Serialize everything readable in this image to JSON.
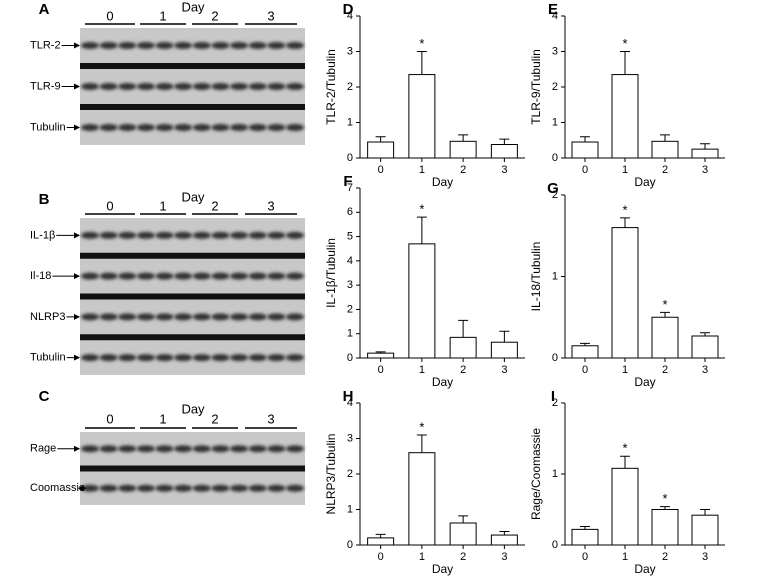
{
  "blots": [
    {
      "panel": "A",
      "title": "Day",
      "groups": [
        "0",
        "1",
        "2",
        "3"
      ],
      "rows": [
        "TLR-2",
        "TLR-9",
        "Tubulin"
      ]
    },
    {
      "panel": "B",
      "title": "Day",
      "groups": [
        "0",
        "1",
        "2",
        "3"
      ],
      "rows": [
        "IL-1β",
        "Il-18",
        "NLRP3",
        "Tubulin"
      ]
    },
    {
      "panel": "C",
      "title": "Day",
      "groups": [
        "0",
        "1",
        "2",
        "3"
      ],
      "rows": [
        "Rage",
        "Coomassie"
      ]
    }
  ],
  "chart_data": [
    {
      "type": "bar",
      "panel": "D",
      "ylabel": "TLR-2/Tubulin",
      "xlabel": "Day",
      "categories": [
        "0",
        "1",
        "2",
        "3"
      ],
      "values": [
        0.45,
        2.35,
        0.47,
        0.38
      ],
      "errors": [
        0.15,
        0.65,
        0.18,
        0.15
      ],
      "color": "#ffffff",
      "ylim": [
        0,
        4
      ],
      "yticks": [
        0,
        1,
        2,
        3,
        4
      ],
      "annotations": [
        {
          "x": "1",
          "text": "*"
        }
      ]
    },
    {
      "type": "bar",
      "panel": "E",
      "ylabel": "TLR-9/Tubulin",
      "xlabel": "Day",
      "categories": [
        "0",
        "1",
        "2",
        "3"
      ],
      "values": [
        0.45,
        2.35,
        0.47,
        0.25
      ],
      "errors": [
        0.15,
        0.65,
        0.18,
        0.15
      ],
      "color": "#ffffff",
      "ylim": [
        0,
        4
      ],
      "yticks": [
        0,
        1,
        2,
        3,
        4
      ],
      "annotations": [
        {
          "x": "1",
          "text": "*"
        }
      ]
    },
    {
      "type": "bar",
      "panel": "F",
      "ylabel": "IL-1β/Tubulin",
      "xlabel": "Day",
      "categories": [
        "0",
        "1",
        "2",
        "3"
      ],
      "values": [
        0.2,
        4.7,
        0.85,
        0.65
      ],
      "errors": [
        0.05,
        1.1,
        0.7,
        0.45
      ],
      "color": "#ffffff",
      "ylim": [
        0,
        7
      ],
      "yticks": [
        0,
        1,
        2,
        3,
        4,
        5,
        6,
        7
      ],
      "annotations": [
        {
          "x": "1",
          "text": "*"
        }
      ]
    },
    {
      "type": "bar",
      "panel": "G",
      "ylabel": "IL-18/Tubulin",
      "xlabel": "Day",
      "categories": [
        "0",
        "1",
        "2",
        "3"
      ],
      "values": [
        0.15,
        1.6,
        0.5,
        0.27
      ],
      "errors": [
        0.03,
        0.12,
        0.06,
        0.04
      ],
      "color": "#ffffff",
      "ylim": [
        0,
        2
      ],
      "yticks": [
        0,
        1,
        2
      ],
      "annotations": [
        {
          "x": "1",
          "text": "*"
        },
        {
          "x": "2",
          "text": "*"
        }
      ]
    },
    {
      "type": "bar",
      "panel": "H",
      "ylabel": "NLRP3/Tubulin",
      "xlabel": "Day",
      "categories": [
        "0",
        "1",
        "2",
        "3"
      ],
      "values": [
        0.2,
        2.6,
        0.62,
        0.28
      ],
      "errors": [
        0.1,
        0.5,
        0.2,
        0.1
      ],
      "color": "#ffffff",
      "ylim": [
        0,
        4
      ],
      "yticks": [
        0,
        1,
        2,
        3,
        4
      ],
      "annotations": [
        {
          "x": "1",
          "text": "*"
        }
      ]
    },
    {
      "type": "bar",
      "panel": "I",
      "ylabel": "Rage/Coomassie",
      "xlabel": "Day",
      "categories": [
        "0",
        "1",
        "2",
        "3"
      ],
      "values": [
        0.22,
        1.08,
        0.5,
        0.42
      ],
      "errors": [
        0.04,
        0.17,
        0.04,
        0.08
      ],
      "color": "#ffffff",
      "ylim": [
        0,
        2
      ],
      "yticks": [
        0,
        1,
        2
      ],
      "annotations": [
        {
          "x": "1",
          "text": "*"
        },
        {
          "x": "2",
          "text": "*"
        }
      ]
    }
  ]
}
